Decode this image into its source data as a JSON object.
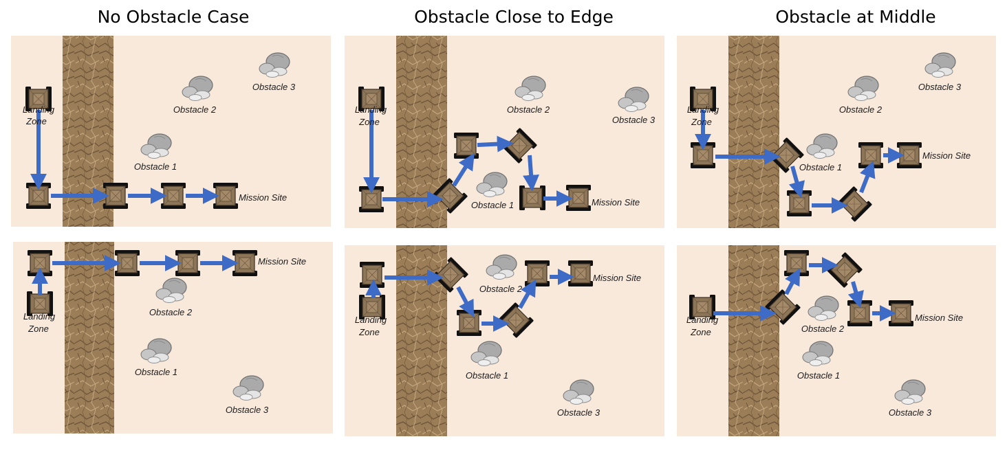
{
  "columns": [
    "No Obstacle Case",
    "Obstacle Close to Edge",
    "Obstacle at Middle"
  ],
  "labels": {
    "landing_line1": "Landing",
    "landing_line2": "Zone",
    "mission_site": "Mission Site",
    "obstacle_1": "Obstacle 1",
    "obstacle_2": "Obstacle 2",
    "obstacle_3": "Obstacle 3"
  },
  "colors": {
    "terrain": "#f9e9db",
    "texture_strip": "#9b7d58",
    "path_arrow": "#3d6bc6",
    "rock": "#b8b8b8"
  }
}
